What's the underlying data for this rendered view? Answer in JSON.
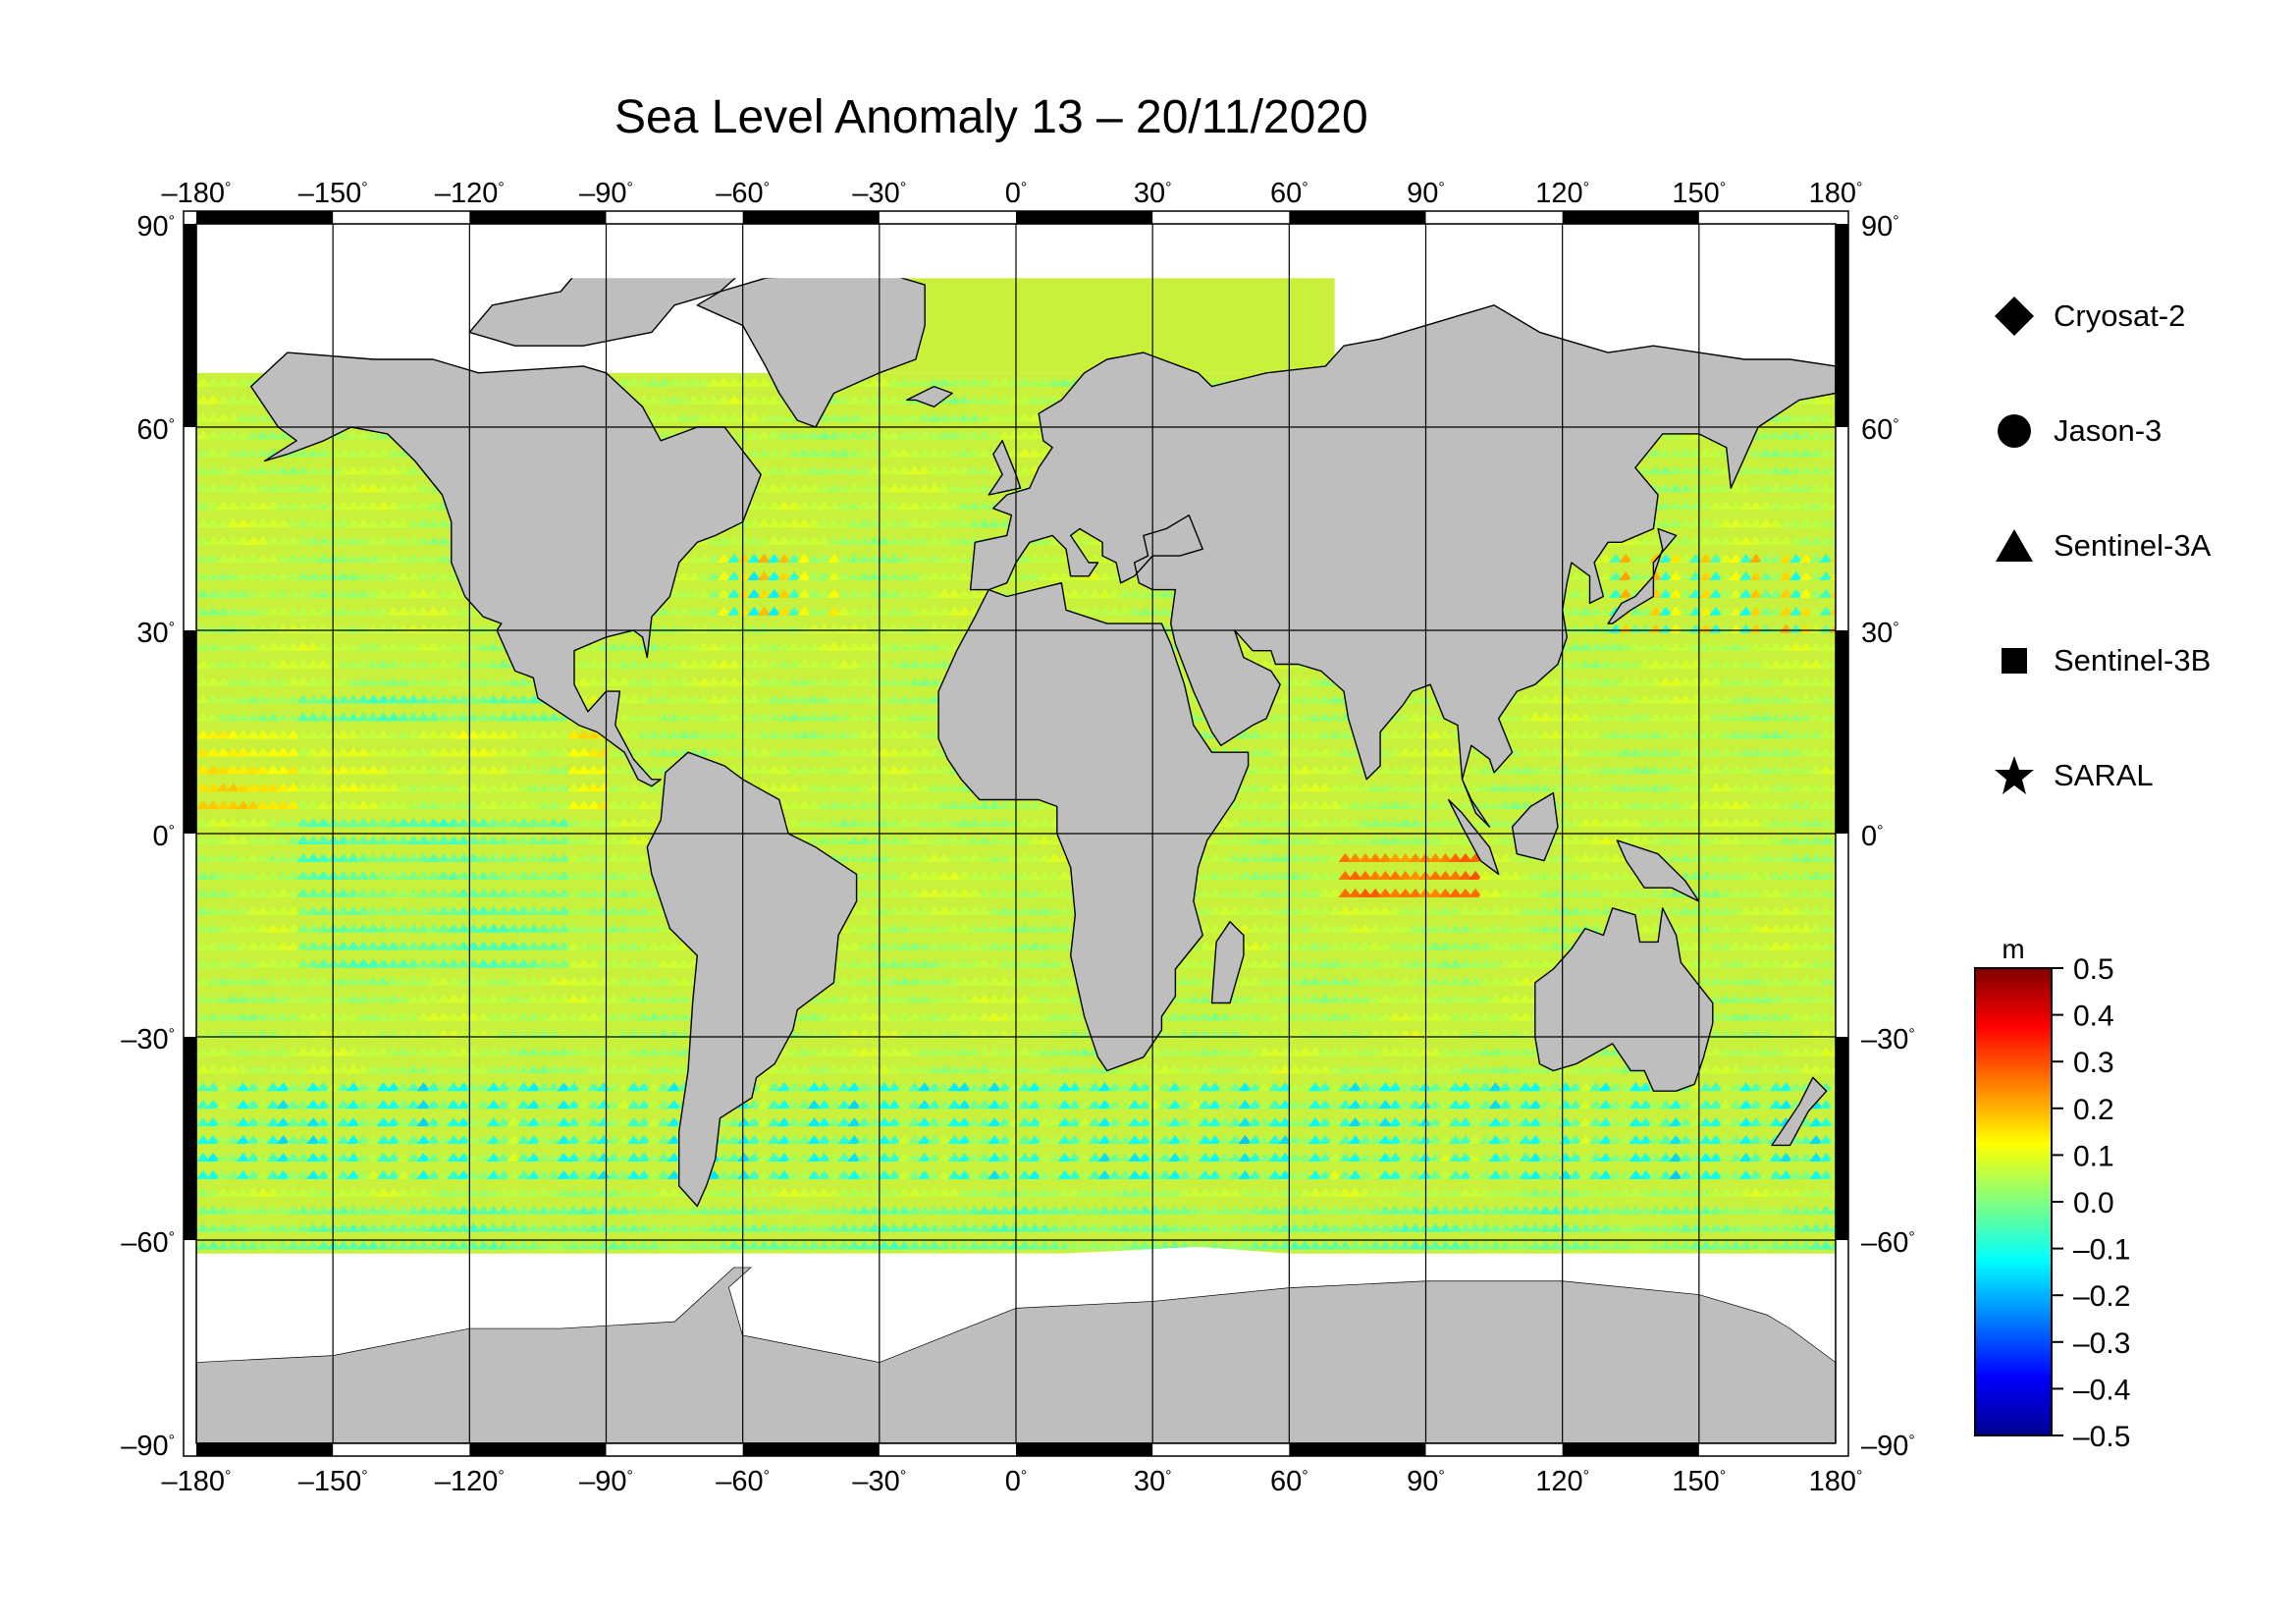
{
  "map": {
    "title": "Sea Level Anomaly 13 – 20/11/2020",
    "lon_ticks": [
      -180,
      -150,
      -120,
      -90,
      -60,
      -30,
      0,
      30,
      60,
      90,
      120,
      150,
      180
    ],
    "lat_ticks": [
      90,
      60,
      30,
      0,
      -30,
      -60,
      -90
    ],
    "lon_range": [
      -180,
      180
    ],
    "lat_range": [
      -90,
      90
    ],
    "degree_symbol": "°",
    "grid": true,
    "colors": {
      "land": "#bebebe",
      "ice": "#ffffff",
      "frame_dark": "#000000",
      "gridline": "#000000"
    }
  },
  "legend": {
    "items": [
      {
        "label": "Cryosat-2",
        "symbol": "diamond"
      },
      {
        "label": "Jason-3",
        "symbol": "circle"
      },
      {
        "label": "Sentinel-3A",
        "symbol": "triangle"
      },
      {
        "label": "Sentinel-3B",
        "symbol": "square"
      },
      {
        "label": "SARAL",
        "symbol": "star"
      }
    ]
  },
  "colorbar": {
    "unit": "m",
    "ticks": [
      "0.5",
      "0.4",
      "0.3",
      "0.2",
      "0.1",
      "0.0",
      "–0.1",
      "–0.2",
      "–0.3",
      "–0.4",
      "–0.5"
    ],
    "range": [
      -0.5,
      0.5
    ],
    "colors": [
      "#00008f",
      "#0000ff",
      "#0080ff",
      "#00ffff",
      "#80ff80",
      "#ffff00",
      "#ff8000",
      "#ff0000",
      "#800000"
    ]
  }
}
